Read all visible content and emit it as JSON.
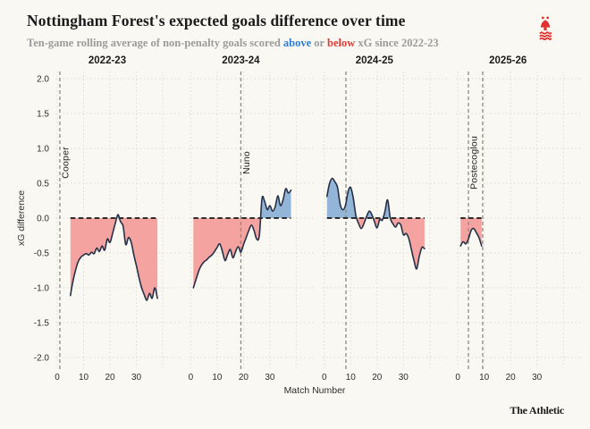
{
  "header": {
    "title": "Nottingham Forest's expected goals difference over time",
    "subtitle": {
      "pre": "Ten-game rolling average of non-penalty goals scored ",
      "above": "above",
      "mid": " or ",
      "below": "below",
      "post": " xG since 2022-23"
    }
  },
  "branding": {
    "credit": "The Athletic",
    "crest": "nottingham-forest-crest",
    "crest_color": "#e0312e"
  },
  "chart_data": {
    "type": "area",
    "title": "Nottingham Forest's expected goals difference over time",
    "subtitle": "Ten-game rolling average of non-penalty goals scored above or below xG since 2022-23",
    "xlabel": "Match Number",
    "ylabel": "xG difference",
    "ylim": [
      -2.0,
      2.0
    ],
    "yticks": [
      "2.0",
      "1.5",
      "1.0",
      "0.5",
      "0.0",
      "-0.5",
      "-1.0",
      "-1.5",
      "-2.0"
    ],
    "xticks": [
      0,
      10,
      20,
      30
    ],
    "grid": true,
    "colors": {
      "above_fill": "#93b5d8",
      "below_fill": "#f4a3a0",
      "line": "#263147",
      "zero_line": "#161616",
      "manager_line": "#8b8b82",
      "background": "#f9f8f2"
    },
    "panels": [
      {
        "season": "2022-23",
        "start_match": 5,
        "values": [
          -1.11,
          -0.9,
          -0.74,
          -0.62,
          -0.56,
          -0.53,
          -0.51,
          -0.53,
          -0.49,
          -0.51,
          -0.43,
          -0.48,
          -0.4,
          -0.46,
          -0.3,
          -0.35,
          -0.22,
          -0.08,
          0.05,
          -0.05,
          -0.12,
          -0.38,
          -0.28,
          -0.34,
          -0.52,
          -0.68,
          -0.85,
          -1.0,
          -1.1,
          -1.18,
          -1.08,
          -1.15,
          -1.0,
          -1.15
        ],
        "managers": [
          {
            "label": "Cooper",
            "match": 1
          }
        ]
      },
      {
        "season": "2023-24",
        "start_match": 1,
        "values": [
          -1.0,
          -0.88,
          -0.76,
          -0.68,
          -0.63,
          -0.6,
          -0.56,
          -0.53,
          -0.48,
          -0.42,
          -0.37,
          -0.48,
          -0.61,
          -0.52,
          -0.45,
          -0.57,
          -0.48,
          -0.41,
          -0.49,
          -0.38,
          -0.28,
          -0.18,
          -0.1,
          -0.18,
          -0.3,
          -0.25,
          0.28,
          0.24,
          0.12,
          0.18,
          0.1,
          0.16,
          0.32,
          0.18,
          0.26,
          0.42,
          0.36,
          0.4
        ],
        "managers": [
          {
            "label": "Nuno",
            "match": 19
          }
        ]
      },
      {
        "season": "2024-25",
        "start_match": 1,
        "values": [
          0.31,
          0.5,
          0.57,
          0.52,
          0.44,
          0.2,
          0.12,
          0.18,
          0.38,
          0.44,
          0.28,
          0.03,
          -0.08,
          -0.15,
          -0.08,
          0.02,
          0.1,
          0.05,
          -0.05,
          -0.14,
          -0.02,
          -0.03,
          0.1,
          0.26,
          0.0,
          -0.08,
          -0.13,
          -0.07,
          -0.1,
          -0.24,
          -0.22,
          -0.29,
          -0.45,
          -0.61,
          -0.73,
          -0.55,
          -0.42,
          -0.44
        ],
        "managers": [
          {
            "label": "",
            "match": 8.2
          }
        ]
      },
      {
        "season": "2025-26",
        "start_match": 1,
        "values": [
          -0.4,
          -0.34,
          -0.37,
          -0.3,
          -0.18,
          -0.15,
          -0.21,
          -0.28,
          -0.4
        ],
        "managers": [
          {
            "label": "Postecoglou",
            "match": 4
          },
          {
            "label": "",
            "match": 9.4
          }
        ]
      }
    ]
  }
}
